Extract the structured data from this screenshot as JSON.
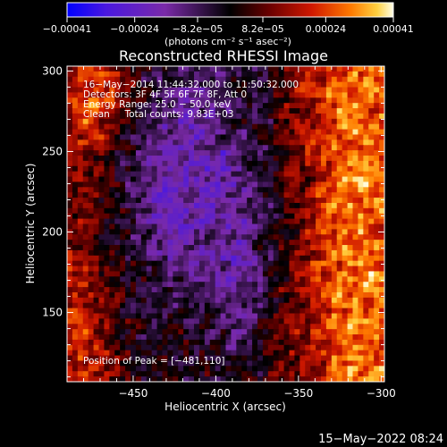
{
  "chart_data": {
    "type": "heatmap",
    "title": "Reconstructed RHESSI Image",
    "xlabel": "Heliocentric X (arcsec)",
    "ylabel": "Heliocentric Y (arcsec)",
    "xlim": [
      -490,
      -298
    ],
    "ylim": [
      107,
      303
    ],
    "xticks": [
      -450,
      -400,
      -350,
      -300
    ],
    "xtick_labels": [
      "−450",
      "−400",
      "−350",
      "−300"
    ],
    "yticks": [
      150,
      200,
      250,
      300
    ],
    "ytick_labels": [
      "150",
      "200",
      "250",
      "300"
    ],
    "colorbar": {
      "range": [
        -0.00041,
        0.00041
      ],
      "ticks": [
        -0.00041,
        -0.00024,
        -8.2e-05,
        8.2e-05,
        0.00024,
        0.00041
      ],
      "tick_labels": [
        "−0.00041",
        "−0.00024",
        "−8.2e−05",
        "8.2e−05",
        "0.00024",
        "0.00041"
      ],
      "unit_label": "(photons cm⁻² s⁻¹ asec⁻²)",
      "colors": [
        "#0000ff",
        "#4a18e0",
        "#7a2aa8",
        "#000000",
        "#6a0000",
        "#d01800",
        "#ff7a00",
        "#ffd040",
        "#ffffe8"
      ]
    },
    "annotations": [
      "16−May−2014 11:44:32.000 to 11:50:32.000",
      "Detectors: 3F 4F 5F 6F 7F 8F, Att 0",
      "Energy Range: 25.0 − 50.0 keV",
      "Clean     Total counts: 9.83E+03"
    ],
    "peak_label": "Position of Peak = [−481,110]",
    "peak": {
      "x": -481,
      "y": 110
    }
  },
  "footer_timestamp": "15−May−2022 08:24"
}
